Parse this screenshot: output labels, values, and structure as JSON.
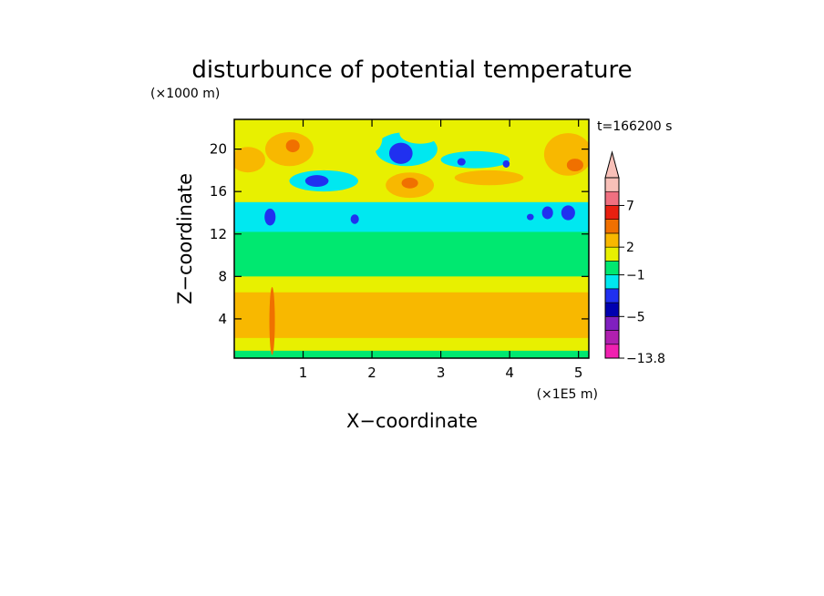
{
  "chart_data": {
    "type": "heatmap",
    "title": "disturbunce of potential temperature",
    "time_label": "t=166200 s",
    "xlabel": "X−coordinate",
    "x_unit": "(×1E5 m)",
    "ylabel": "Z−coordinate",
    "y_unit": "(×1000 m)",
    "xlim": [
      0,
      5.15
    ],
    "ylim": [
      0.3,
      22.8
    ],
    "x_ticks": [
      {
        "value": 1,
        "label": "1"
      },
      {
        "value": 2,
        "label": "2"
      },
      {
        "value": 3,
        "label": "3"
      },
      {
        "value": 4,
        "label": "4"
      },
      {
        "value": 5,
        "label": "5"
      }
    ],
    "y_ticks": [
      {
        "value": 4,
        "label": "4"
      },
      {
        "value": 8,
        "label": "8"
      },
      {
        "value": 12,
        "label": "12"
      },
      {
        "value": 16,
        "label": "16"
      },
      {
        "value": 20,
        "label": "20"
      }
    ],
    "colorbar": {
      "colors": [
        "#f020b0",
        "#b020b0",
        "#8020c0",
        "#0000b0",
        "#2030f0",
        "#00e8f0",
        "#00e870",
        "#e8f000",
        "#f8b800",
        "#f07000",
        "#e82010",
        "#f07080",
        "#f8c0b8"
      ],
      "labels": [
        {
          "text": "7",
          "boundary": 11
        },
        {
          "text": "2",
          "boundary": 8
        },
        {
          "text": "−1",
          "boundary": 6
        },
        {
          "text": "−5",
          "boundary": 3
        },
        {
          "text": "−13.8",
          "boundary": 0
        }
      ],
      "overflow_arrow": "top"
    },
    "field_layers": [
      {
        "color": "#00e870",
        "bands": [
          [
            0.3,
            22.8
          ]
        ]
      },
      {
        "color": "#e8f000",
        "bands": [
          [
            1.0,
            8.0
          ],
          [
            14.8,
            22.8
          ]
        ]
      },
      {
        "color": "#f8b800",
        "bands": [
          [
            2.2,
            6.5
          ]
        ]
      },
      {
        "color": "#00e8f0",
        "bands": [
          [
            12.2,
            15.0
          ]
        ]
      }
    ],
    "field_patches": [
      {
        "color": "#f8b800",
        "cx": 0.8,
        "cy": 20.0,
        "rx": 0.35,
        "ry": 1.6
      },
      {
        "color": "#f8b800",
        "cx": 0.2,
        "cy": 19.0,
        "rx": 0.25,
        "ry": 1.2
      },
      {
        "color": "#f07000",
        "cx": 0.85,
        "cy": 20.3,
        "rx": 0.1,
        "ry": 0.6
      },
      {
        "color": "#f8b800",
        "cx": 2.55,
        "cy": 16.6,
        "rx": 0.35,
        "ry": 1.2
      },
      {
        "color": "#f07000",
        "cx": 2.55,
        "cy": 16.8,
        "rx": 0.12,
        "ry": 0.5
      },
      {
        "color": "#f8b800",
        "cx": 4.85,
        "cy": 19.5,
        "rx": 0.35,
        "ry": 2.0
      },
      {
        "color": "#f07000",
        "cx": 4.95,
        "cy": 18.5,
        "rx": 0.12,
        "ry": 0.6
      },
      {
        "color": "#f8b800",
        "cx": 3.7,
        "cy": 17.3,
        "rx": 0.5,
        "ry": 0.7
      },
      {
        "color": "#00e8f0",
        "cx": 1.3,
        "cy": 17.0,
        "rx": 0.5,
        "ry": 1.0
      },
      {
        "color": "#00e8f0",
        "cx": 2.5,
        "cy": 20.0,
        "rx": 0.45,
        "ry": 1.6
      },
      {
        "color": "#00e8f0",
        "cx": 3.5,
        "cy": 19.0,
        "rx": 0.5,
        "ry": 0.8
      },
      {
        "color": "#2030f0",
        "cx": 1.2,
        "cy": 17.0,
        "rx": 0.17,
        "ry": 0.55
      },
      {
        "color": "#2030f0",
        "cx": 2.42,
        "cy": 19.6,
        "rx": 0.17,
        "ry": 1.0
      },
      {
        "color": "#2030f0",
        "cx": 0.52,
        "cy": 13.6,
        "rx": 0.08,
        "ry": 0.8
      },
      {
        "color": "#2030f0",
        "cx": 1.75,
        "cy": 13.4,
        "rx": 0.06,
        "ry": 0.45
      },
      {
        "color": "#2030f0",
        "cx": 4.55,
        "cy": 14.0,
        "rx": 0.08,
        "ry": 0.6
      },
      {
        "color": "#2030f0",
        "cx": 4.85,
        "cy": 14.0,
        "rx": 0.1,
        "ry": 0.7
      },
      {
        "color": "#2030f0",
        "cx": 3.3,
        "cy": 18.8,
        "rx": 0.06,
        "ry": 0.35
      },
      {
        "color": "#2030f0",
        "cx": 3.95,
        "cy": 18.6,
        "rx": 0.05,
        "ry": 0.35
      },
      {
        "color": "#2030f0",
        "cx": 4.3,
        "cy": 13.6,
        "rx": 0.05,
        "ry": 0.3
      },
      {
        "color": "#e8f000",
        "cx": 2.7,
        "cy": 21.5,
        "rx": 0.3,
        "ry": 1.0
      },
      {
        "color": "#e8f000",
        "cx": 1.95,
        "cy": 21.0,
        "rx": 0.2,
        "ry": 1.4
      },
      {
        "color": "#f07000",
        "cx": 0.55,
        "cy": 3.8,
        "rx": 0.04,
        "ry": 3.2
      }
    ]
  }
}
